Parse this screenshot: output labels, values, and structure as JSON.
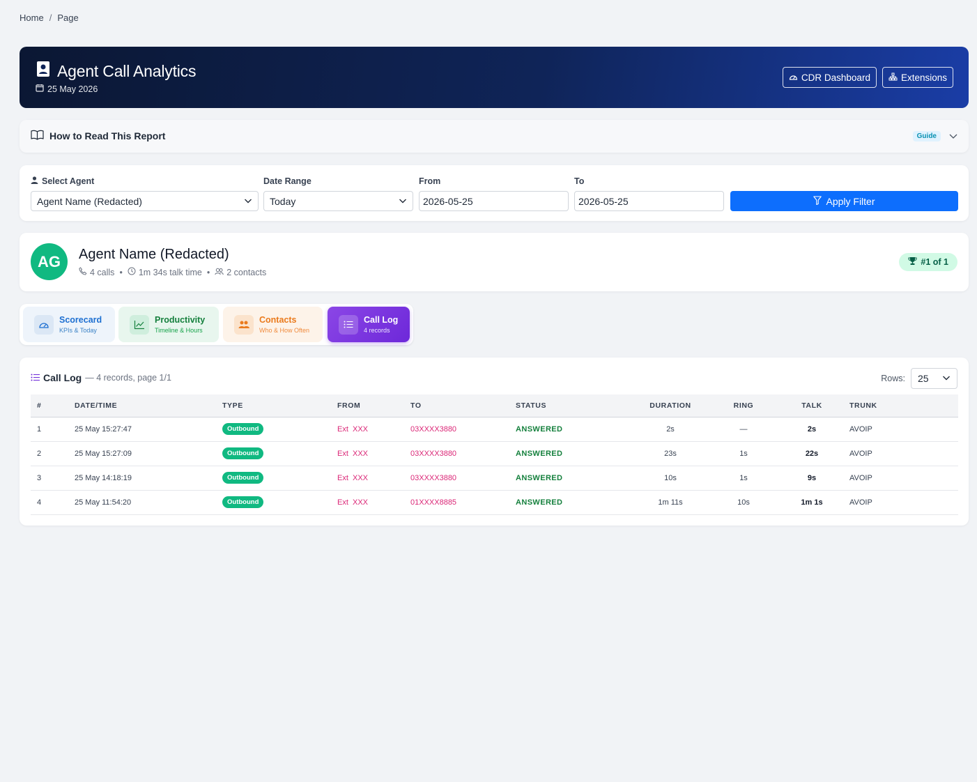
{
  "breadcrumb": {
    "home": "Home",
    "separator": "/",
    "current": "Page"
  },
  "header": {
    "title": "Agent Call Analytics",
    "date": "25 May 2026",
    "buttons": {
      "cdr": "CDR Dashboard",
      "extensions": "Extensions"
    }
  },
  "guide": {
    "title": "How to Read This Report",
    "badge": "Guide"
  },
  "filters": {
    "agent_label": "Select Agent",
    "agent_value": "Agent Name (Redacted)",
    "range_label": "Date Range",
    "range_value": "Today",
    "from_label": "From",
    "from_value": "2026-05-25",
    "to_label": "To",
    "to_value": "2026-05-25",
    "apply_label": "Apply Filter"
  },
  "profile": {
    "initials": "AG",
    "name": "Agent Name (Redacted)",
    "calls": "4 calls",
    "talk": "1m 34s talk time",
    "contacts": "2 contacts",
    "rank": "#1 of 1"
  },
  "tabs": [
    {
      "title": "Scorecard",
      "subtitle": "KPIs & Today",
      "icon": "gauge-icon"
    },
    {
      "title": "Productivity",
      "subtitle": "Timeline & Hours",
      "icon": "chart-line-icon"
    },
    {
      "title": "Contacts",
      "subtitle": "Who & How Often",
      "icon": "people-icon"
    },
    {
      "title": "Call Log",
      "subtitle": "4 records",
      "icon": "list-icon",
      "active": true
    }
  ],
  "calllog": {
    "title": "Call Log",
    "summary": "— 4 records, page 1/1",
    "rows_label": "Rows:",
    "rows_value": "25",
    "columns": [
      "#",
      "DATE/TIME",
      "TYPE",
      "FROM",
      "TO",
      "STATUS",
      "DURATION",
      "RING",
      "TALK",
      "TRUNK"
    ],
    "rows": [
      {
        "n": "1",
        "datetime": "25 May 15:27:47",
        "type": "Outbound",
        "from": "Ext  XXX",
        "to": "03XXXX3880",
        "status": "ANSWERED",
        "duration": "2s",
        "ring": "—",
        "talk": "2s",
        "trunk": "AVOIP"
      },
      {
        "n": "2",
        "datetime": "25 May 15:27:09",
        "type": "Outbound",
        "from": "Ext  XXX",
        "to": "03XXXX3880",
        "status": "ANSWERED",
        "duration": "23s",
        "ring": "1s",
        "talk": "22s",
        "trunk": "AVOIP"
      },
      {
        "n": "3",
        "datetime": "25 May 14:18:19",
        "type": "Outbound",
        "from": "Ext  XXX",
        "to": "03XXXX3880",
        "status": "ANSWERED",
        "duration": "10s",
        "ring": "1s",
        "talk": "9s",
        "trunk": "AVOIP"
      },
      {
        "n": "4",
        "datetime": "25 May 11:54:20",
        "type": "Outbound",
        "from": "Ext  XXX",
        "to": "01XXXX8885",
        "status": "ANSWERED",
        "duration": "1m 11s",
        "ring": "10s",
        "talk": "1m 1s",
        "trunk": "AVOIP"
      }
    ]
  },
  "colors": {
    "header_gradient": [
      "#0b1733",
      "#1a3da6"
    ],
    "primary": "#0d6efd",
    "success": "#10b981",
    "link_pink": "#db2777",
    "active_tab": "#7c3aed"
  }
}
